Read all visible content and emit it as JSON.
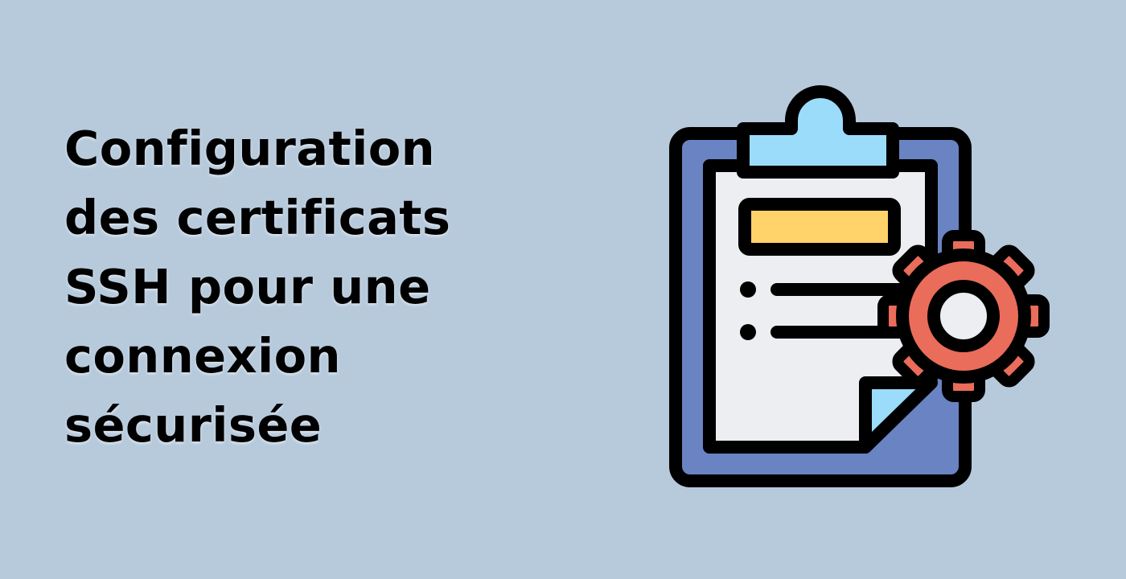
{
  "title": {
    "lines": [
      "Configuration",
      "des certificats",
      "SSH pour une",
      "connexion",
      "sécurisée"
    ]
  },
  "illustration": {
    "name": "clipboard-settings-icon",
    "colors": {
      "background": "#b7cadc",
      "clipboard_board": "#6a83c2",
      "paper": "#eceef2",
      "clip": "#9bdcfa",
      "header_bar": "#ffd36a",
      "gear": "#ea6c5a",
      "outline": "#000000"
    }
  }
}
